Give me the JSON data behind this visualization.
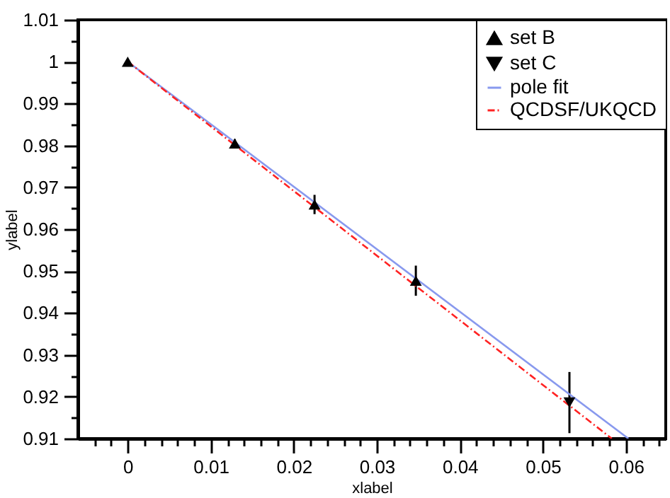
{
  "chart_data": {
    "type": "scatter",
    "xlabel": "xlabel",
    "ylabel": "ylabel",
    "xlim": [
      -0.006,
      0.0648
    ],
    "ylim": [
      0.91,
      1.01
    ],
    "xticks": [
      {
        "value": -0.004,
        "label": null
      },
      {
        "value": -0.002,
        "label": null
      },
      0,
      {
        "value": 0.002,
        "label": null
      },
      {
        "value": 0.004,
        "label": null
      },
      {
        "value": 0.006,
        "label": null
      },
      {
        "value": 0.008,
        "label": null
      },
      0.01,
      {
        "value": 0.012,
        "label": null
      },
      {
        "value": 0.014,
        "label": null
      },
      {
        "value": 0.016,
        "label": null
      },
      {
        "value": 0.018,
        "label": null
      },
      0.02,
      {
        "value": 0.022,
        "label": null
      },
      {
        "value": 0.024,
        "label": null
      },
      {
        "value": 0.026,
        "label": null
      },
      {
        "value": 0.028,
        "label": null
      },
      0.03,
      {
        "value": 0.032,
        "label": null
      },
      {
        "value": 0.034,
        "label": null
      },
      {
        "value": 0.036,
        "label": null
      },
      {
        "value": 0.038,
        "label": null
      },
      0.04,
      {
        "value": 0.042,
        "label": null
      },
      {
        "value": 0.044,
        "label": null
      },
      {
        "value": 0.046,
        "label": null
      },
      {
        "value": 0.048,
        "label": null
      },
      0.05,
      {
        "value": 0.052,
        "label": null
      },
      {
        "value": 0.054,
        "label": null
      },
      {
        "value": 0.056,
        "label": null
      },
      {
        "value": 0.058,
        "label": null
      },
      0.06,
      {
        "value": 0.062,
        "label": null
      },
      {
        "value": 0.064,
        "label": null
      }
    ],
    "yticks": [
      0.91,
      {
        "value": 0.915,
        "label": null
      },
      0.92,
      {
        "value": 0.925,
        "label": null
      },
      0.93,
      {
        "value": 0.935,
        "label": null
      },
      0.94,
      {
        "value": 0.945,
        "label": null
      },
      0.95,
      {
        "value": 0.955,
        "label": null
      },
      0.96,
      {
        "value": 0.965,
        "label": null
      },
      0.97,
      {
        "value": 0.975,
        "label": null
      },
      0.98,
      {
        "value": 0.985,
        "label": null
      },
      0.99,
      {
        "value": 0.995,
        "label": null
      },
      1,
      {
        "value": 1.005,
        "label": null
      },
      1.01
    ],
    "grid": false,
    "legend": "top right",
    "series": [
      {
        "name": "set B",
        "type": "scatter",
        "marker": "triangle",
        "color": "#000000",
        "x": [
          0,
          0.0129,
          0.0225,
          0.0347
        ],
        "values": [
          1.0,
          0.9805,
          0.9659,
          0.9477
        ],
        "errors": [
          null,
          0.001,
          0.0023,
          0.0036
        ]
      },
      {
        "name": "set C",
        "type": "scatter",
        "marker": "triangle-down",
        "color": "#000000",
        "x": [
          0.0532
        ],
        "values": [
          0.9186
        ],
        "errors": [
          0.0073
        ]
      },
      {
        "name": "pole fit",
        "type": "line",
        "line_style": "solid",
        "color": "#8899ee",
        "x": [
          0,
          0.0603
        ],
        "values": [
          1.0,
          0.91
        ]
      },
      {
        "name": "QCDSF/UKQCD",
        "type": "line",
        "line_style": "dashdot",
        "color": "#ff2222",
        "x": [
          0,
          0.0583
        ],
        "values": [
          1.0,
          0.91
        ]
      }
    ]
  }
}
